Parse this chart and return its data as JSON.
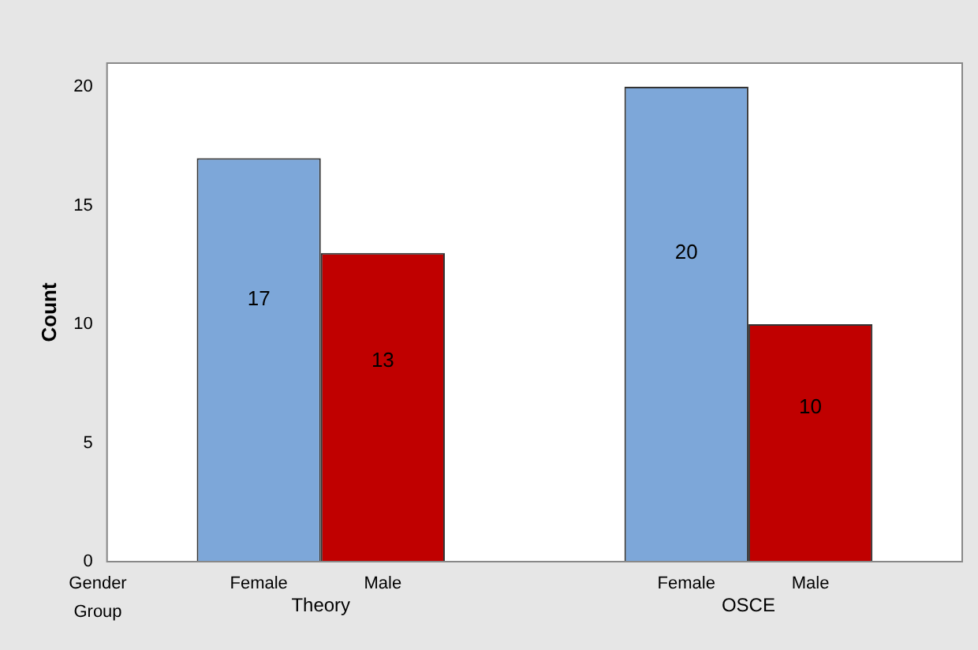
{
  "chart_data": {
    "type": "bar",
    "ylabel": "Count",
    "categories": [
      "Theory",
      "OSCE"
    ],
    "series": [
      {
        "name": "Female",
        "color": "#7da7d9",
        "values": [
          17,
          20
        ]
      },
      {
        "name": "Male",
        "color": "#c00000",
        "values": [
          13,
          10
        ]
      }
    ],
    "ylim": [
      0,
      21
    ],
    "yticks": [
      0,
      5,
      10,
      15,
      20
    ],
    "data_labels": true,
    "legend": false,
    "grid": false,
    "annotations": [
      "Gender",
      "Group"
    ]
  }
}
